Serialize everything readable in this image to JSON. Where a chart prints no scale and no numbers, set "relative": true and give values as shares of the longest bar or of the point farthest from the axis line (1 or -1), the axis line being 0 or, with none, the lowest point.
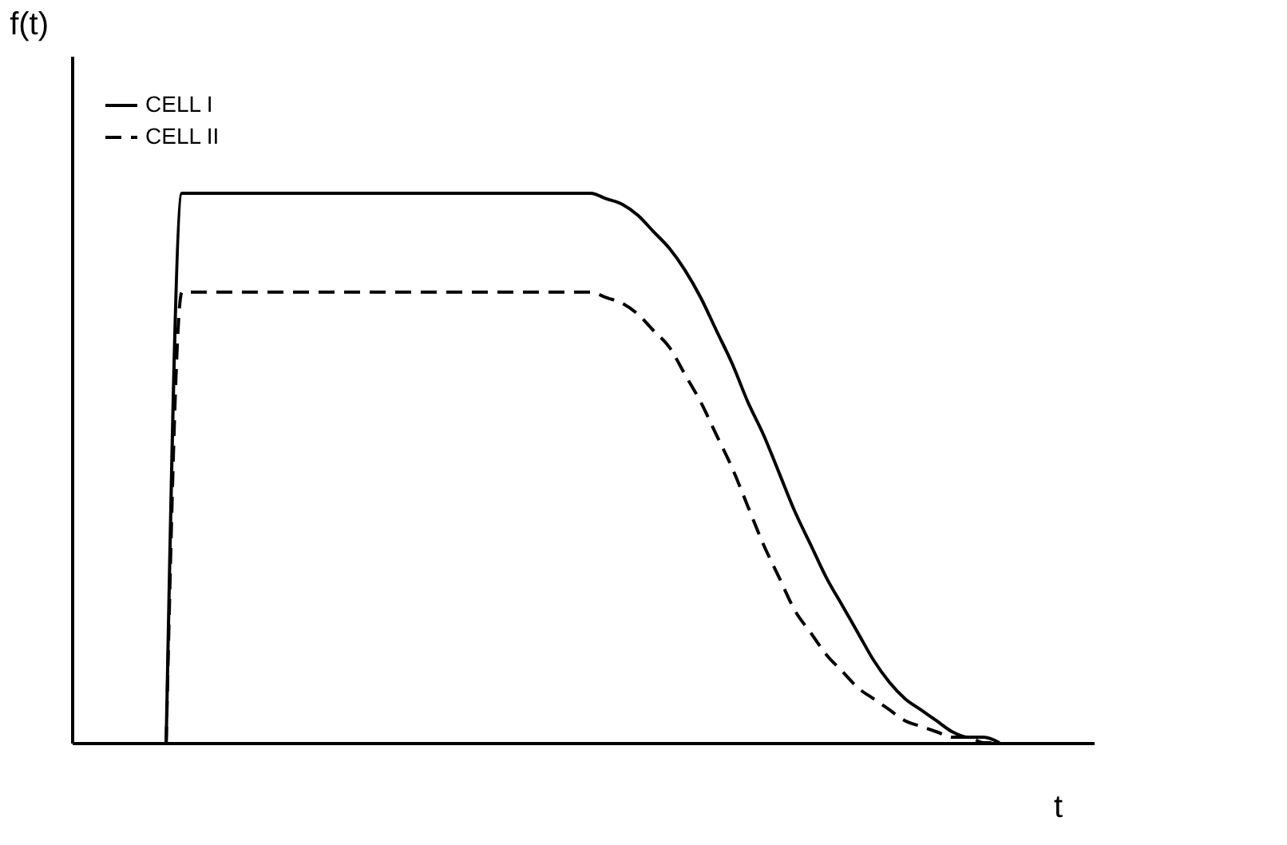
{
  "chart_data": {
    "type": "line",
    "xlabel": "t",
    "ylabel": "f(t)",
    "relative": true,
    "grid": false,
    "legend": "top left",
    "tick_labels": false,
    "marker": "none",
    "categories": [
      null,
      null,
      null,
      null,
      null,
      null,
      null,
      null,
      null,
      null,
      null,
      null,
      null,
      null,
      null,
      null,
      null,
      null,
      null,
      null,
      null,
      null,
      null,
      null,
      null,
      null,
      null,
      null,
      null,
      null,
      null,
      null,
      null,
      null,
      null,
      null,
      null,
      null,
      null,
      null,
      null,
      null,
      null,
      null,
      null,
      null,
      null,
      null,
      null,
      null,
      null,
      null,
      null,
      null,
      null,
      null,
      null,
      null,
      null,
      null,
      null,
      null,
      null,
      null,
      null,
      null
    ],
    "series": [
      {
        "name": "CELL I",
        "color": "#000000",
        "line_style": "solid",
        "values": [
          null,
          null,
          null,
          null,
          null,
          null,
          0,
          1,
          1,
          1,
          1,
          1,
          1,
          1,
          1,
          1,
          1,
          1,
          1,
          1,
          1,
          1,
          1,
          1,
          1,
          1,
          1,
          1,
          1,
          1,
          1,
          1,
          1,
          1,
          0.99,
          0.98,
          0.96,
          0.93,
          0.9,
          0.86,
          0.81,
          0.75,
          0.69,
          0.62,
          0.56,
          0.49,
          0.42,
          0.36,
          0.3,
          0.25,
          0.2,
          0.15,
          0.11,
          0.08,
          0.06,
          0.04,
          0.02,
          0.01,
          0.01,
          0,
          null,
          null,
          null,
          null,
          null,
          null
        ]
      },
      {
        "name": "CELL II",
        "color": "#000000",
        "line_style": "dashed",
        "values": [
          null,
          null,
          null,
          null,
          null,
          null,
          0,
          0.82,
          0.82,
          0.82,
          0.82,
          0.82,
          0.82,
          0.82,
          0.82,
          0.82,
          0.82,
          0.82,
          0.82,
          0.82,
          0.82,
          0.82,
          0.82,
          0.82,
          0.82,
          0.82,
          0.82,
          0.82,
          0.82,
          0.82,
          0.82,
          0.82,
          0.82,
          0.82,
          0.81,
          0.8,
          0.78,
          0.75,
          0.72,
          0.67,
          0.62,
          0.56,
          0.5,
          0.43,
          0.36,
          0.3,
          0.24,
          0.2,
          0.16,
          0.13,
          0.1,
          0.08,
          0.06,
          0.04,
          0.03,
          0.02,
          0.01,
          0.01,
          0,
          0,
          null,
          null,
          null,
          null,
          null,
          null
        ]
      }
    ]
  }
}
